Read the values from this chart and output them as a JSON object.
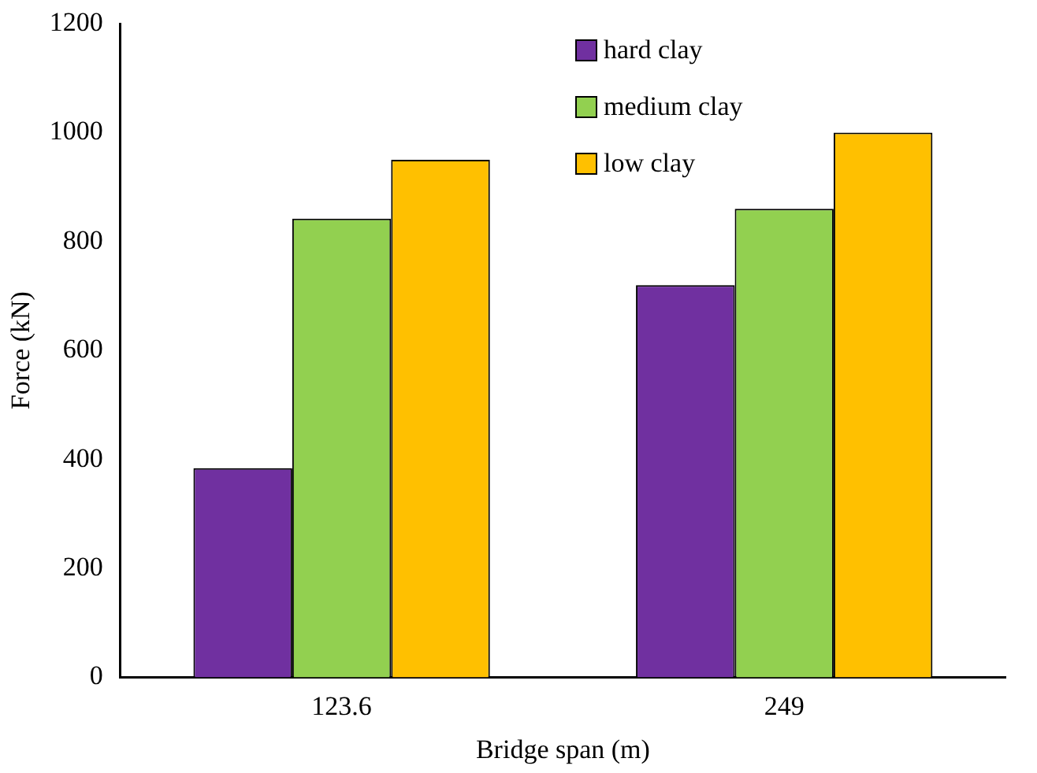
{
  "chart_data": {
    "type": "bar",
    "xlabel": "Bridge span (m)",
    "ylabel": "Force (kN)",
    "categories": [
      "123.6",
      "249"
    ],
    "series": [
      {
        "name": "hard clay",
        "color": "#7030a0",
        "values": [
          384,
          720
        ]
      },
      {
        "name": "medium clay",
        "color": "#92d050",
        "values": [
          842,
          860
        ]
      },
      {
        "name": "low clay",
        "color": "#ffc000",
        "values": [
          950,
          1000
        ]
      }
    ],
    "ylim": [
      0,
      1200
    ],
    "yticks": [
      0,
      200,
      400,
      600,
      800,
      1000,
      1200
    ],
    "grid": false,
    "legend": "top right"
  }
}
